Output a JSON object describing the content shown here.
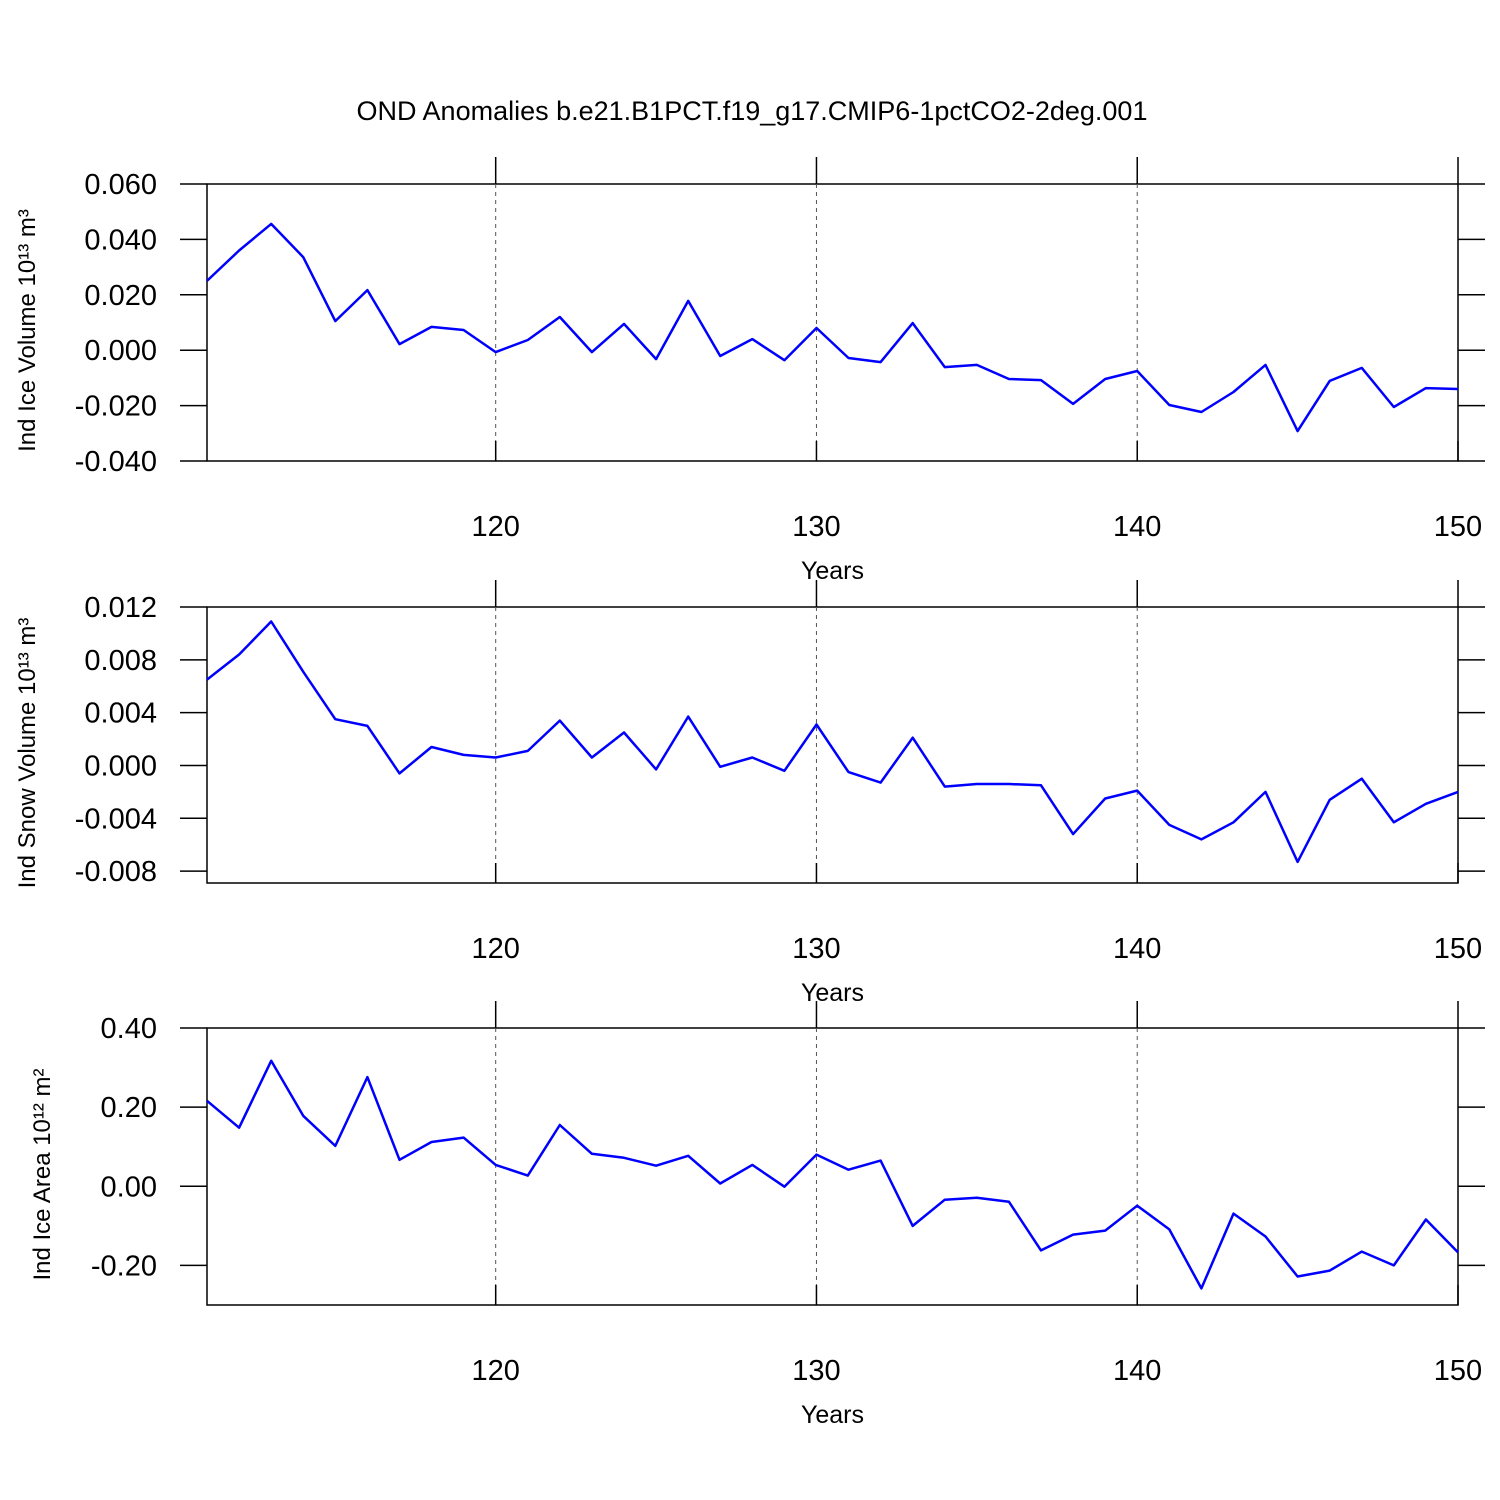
{
  "title": "OND Anomalies b.e21.B1PCT.f19_g17.CMIP6-1pctCO2-2deg.001",
  "chart_data": [
    {
      "type": "line",
      "ylabel": "Ind Ice Volume 10¹³ m³",
      "xlabel": "Years",
      "color": "#0000ff",
      "grid": "x",
      "x": [
        111,
        112,
        113,
        114,
        115,
        116,
        117,
        118,
        119,
        120,
        121,
        122,
        123,
        124,
        125,
        126,
        127,
        128,
        129,
        130,
        131,
        132,
        133,
        134,
        135,
        136,
        137,
        138,
        139,
        140,
        141,
        142,
        143,
        144,
        145,
        146,
        147,
        148,
        149,
        150
      ],
      "values": [
        0.025,
        0.036,
        0.0456,
        0.0336,
        0.0105,
        0.0217,
        0.0022,
        0.0084,
        0.0073,
        -0.0007,
        0.0037,
        0.012,
        -0.0007,
        0.0095,
        -0.0032,
        0.0178,
        -0.0021,
        0.004,
        -0.0036,
        0.008,
        -0.0028,
        -0.0043,
        0.0098,
        -0.0061,
        -0.0053,
        -0.0104,
        -0.0108,
        -0.0194,
        -0.0104,
        -0.0075,
        -0.0198,
        -0.0223,
        -0.0151,
        -0.0053,
        -0.0292,
        -0.0111,
        -0.0064,
        -0.0205,
        -0.0137,
        -0.014
      ],
      "xlim": [
        111,
        150
      ],
      "xticks": [
        120,
        130,
        140,
        150
      ],
      "ylim": [
        -0.04,
        0.06
      ],
      "yticks": [
        {
          "value": 0.06,
          "label": "0.060"
        },
        {
          "value": 0.04,
          "label": "0.040"
        },
        {
          "value": 0.02,
          "label": "0.020"
        },
        {
          "value": 0,
          "label": "0.000"
        },
        {
          "value": -0.02,
          "label": "-0.020"
        },
        {
          "value": -0.04,
          "label": "-0.040"
        }
      ]
    },
    {
      "type": "line",
      "ylabel": "Ind Snow Volume 10¹³ m³",
      "xlabel": "Years",
      "color": "#0000ff",
      "grid": "x",
      "x": [
        111,
        112,
        113,
        114,
        115,
        116,
        117,
        118,
        119,
        120,
        121,
        122,
        123,
        124,
        125,
        126,
        127,
        128,
        129,
        130,
        131,
        132,
        133,
        134,
        135,
        136,
        137,
        138,
        139,
        140,
        141,
        142,
        143,
        144,
        145,
        146,
        147,
        148,
        149,
        150
      ],
      "values": [
        0.0065,
        0.0084,
        0.0109,
        0.0071,
        0.0035,
        0.003,
        -0.0006,
        0.0014,
        0.0008,
        0.0006,
        0.0011,
        0.0034,
        0.0006,
        0.0025,
        -0.0003,
        0.0037,
        -0.0001,
        0.0006,
        -0.0004,
        0.0031,
        -0.0005,
        -0.0013,
        0.0021,
        -0.0016,
        -0.0014,
        -0.0014,
        -0.0015,
        -0.0052,
        -0.0025,
        -0.0019,
        -0.0045,
        -0.0056,
        -0.0043,
        -0.002,
        -0.0073,
        -0.0026,
        -0.001,
        -0.0043,
        -0.0029,
        -0.002
      ],
      "xlim": [
        111,
        150
      ],
      "xticks": [
        120,
        130,
        140,
        150
      ],
      "ylim": [
        -0.0089,
        0.012
      ],
      "yticks": [
        {
          "value": 0.012,
          "label": "0.012"
        },
        {
          "value": 0.008,
          "label": "0.008"
        },
        {
          "value": 0.004,
          "label": "0.004"
        },
        {
          "value": 0,
          "label": "0.000"
        },
        {
          "value": -0.004,
          "label": "-0.004"
        },
        {
          "value": -0.008,
          "label": "-0.008"
        }
      ]
    },
    {
      "type": "line",
      "ylabel": "Ind Ice Area 10¹² m²",
      "xlabel": "Years",
      "color": "#0000ff",
      "grid": "x",
      "x": [
        111,
        112,
        113,
        114,
        115,
        116,
        117,
        118,
        119,
        120,
        121,
        122,
        123,
        124,
        125,
        126,
        127,
        128,
        129,
        130,
        131,
        132,
        133,
        134,
        135,
        136,
        137,
        138,
        139,
        140,
        141,
        142,
        143,
        144,
        145,
        146,
        147,
        148,
        149,
        150
      ],
      "values": [
        0.216,
        0.148,
        0.317,
        0.178,
        0.102,
        0.276,
        0.067,
        0.112,
        0.123,
        0.054,
        0.027,
        0.155,
        0.082,
        0.072,
        0.052,
        0.077,
        0.007,
        0.054,
        -0.001,
        0.08,
        0.042,
        0.065,
        -0.1,
        -0.034,
        -0.029,
        -0.039,
        -0.162,
        -0.122,
        -0.112,
        -0.049,
        -0.109,
        -0.258,
        -0.069,
        -0.127,
        -0.228,
        -0.213,
        -0.165,
        -0.2,
        -0.084,
        -0.167
      ],
      "xlim": [
        111,
        150
      ],
      "xticks": [
        120,
        130,
        140,
        150
      ],
      "ylim": [
        -0.3,
        0.4
      ],
      "yticks": [
        {
          "value": 0.4,
          "label": "0.40"
        },
        {
          "value": 0.2,
          "label": "0.20"
        },
        {
          "value": 0,
          "label": "0.00"
        },
        {
          "value": -0.2,
          "label": "-0.20"
        }
      ]
    }
  ]
}
